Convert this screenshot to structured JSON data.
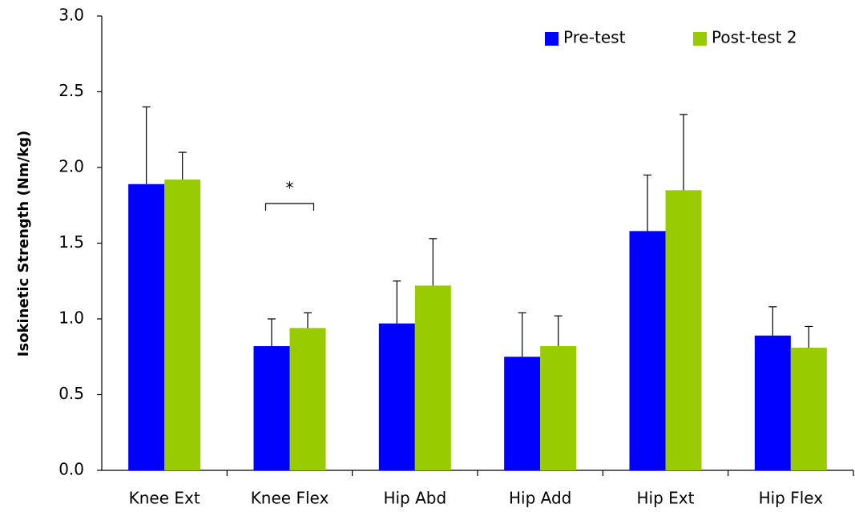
{
  "chart_data": {
    "type": "bar",
    "y_label": "Isokinetic Strength (Nm/kg)",
    "categories": [
      "Knee Ext",
      "Knee Flex",
      "Hip Abd",
      "Hip Add",
      "Hip Ext",
      "Hip Flex"
    ],
    "series": [
      {
        "name": "Pre-test",
        "color": "#0000ff",
        "values": [
          1.89,
          0.82,
          0.97,
          0.75,
          1.58,
          0.89
        ],
        "errors": [
          0.51,
          0.18,
          0.28,
          0.29,
          0.37,
          0.19
        ]
      },
      {
        "name": "Post-test 2",
        "color": "#99cc00",
        "values": [
          1.92,
          0.94,
          1.22,
          0.82,
          1.85,
          0.81
        ],
        "errors": [
          0.18,
          0.1,
          0.31,
          0.2,
          0.5,
          0.14
        ]
      }
    ],
    "annotations": [
      "*"
    ],
    "ylim": [
      0,
      3
    ],
    "yticks": [
      {
        "value": 0,
        "label": "0.0"
      },
      0.5,
      {
        "value": 1,
        "label": "1.0"
      },
      1.5,
      {
        "value": 2,
        "label": "2.0"
      },
      2.5,
      {
        "value": 3,
        "label": "3.0"
      }
    ],
    "legend": "top-right"
  }
}
